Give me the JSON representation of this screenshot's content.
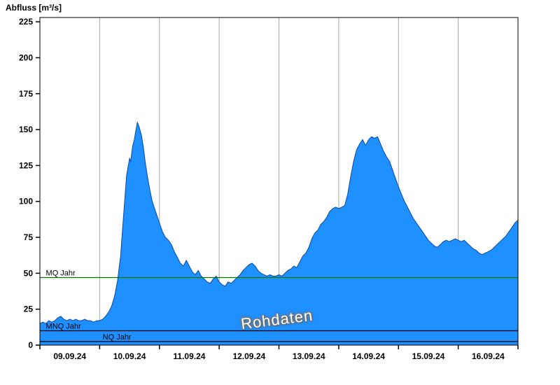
{
  "title": "Abfluss [m³/s]",
  "watermark": "Rohdaten",
  "chart_data": {
    "type": "area",
    "title": "",
    "xlabel": "",
    "ylabel": "Abfluss [m³/s]",
    "ylim": [
      0,
      228
    ],
    "yticks": [
      0,
      25,
      50,
      75,
      100,
      125,
      150,
      175,
      200,
      225
    ],
    "x_labels": [
      "09.09.24",
      "10.09.24",
      "11.09.24",
      "12.09.24",
      "13.09.24",
      "14.09.24",
      "15.09.24",
      "16.09.24"
    ],
    "x_range_days": [
      0,
      8
    ],
    "grid": true,
    "grid_color": "#a9a9a9",
    "fill_color": "#1e90ff",
    "line_color": "#0d47a1",
    "series_name": "Abfluss Rohdaten",
    "reference_lines": [
      {
        "label": "MQ Jahr",
        "value": 47,
        "color": "#007700",
        "label_day": 0.1
      },
      {
        "label": "MNQ Jahr",
        "value": 10,
        "color": "#000000",
        "label_day": 0.1
      },
      {
        "label": "NQ Jahr",
        "value": 2.5,
        "color": "#000000",
        "label_day": 1.05
      }
    ],
    "points": [
      [
        0.0,
        15
      ],
      [
        0.05,
        16
      ],
      [
        0.1,
        15
      ],
      [
        0.15,
        17
      ],
      [
        0.2,
        16
      ],
      [
        0.25,
        17
      ],
      [
        0.3,
        19
      ],
      [
        0.35,
        20
      ],
      [
        0.4,
        18
      ],
      [
        0.45,
        17
      ],
      [
        0.5,
        18
      ],
      [
        0.55,
        17
      ],
      [
        0.6,
        18
      ],
      [
        0.65,
        17
      ],
      [
        0.7,
        17
      ],
      [
        0.75,
        18
      ],
      [
        0.8,
        17
      ],
      [
        0.85,
        17
      ],
      [
        0.9,
        16
      ],
      [
        0.95,
        17
      ],
      [
        1.0,
        17
      ],
      [
        1.05,
        18
      ],
      [
        1.1,
        20
      ],
      [
        1.15,
        23
      ],
      [
        1.2,
        27
      ],
      [
        1.25,
        34
      ],
      [
        1.3,
        45
      ],
      [
        1.35,
        62
      ],
      [
        1.4,
        90
      ],
      [
        1.45,
        118
      ],
      [
        1.5,
        130
      ],
      [
        1.52,
        128
      ],
      [
        1.55,
        138
      ],
      [
        1.58,
        143
      ],
      [
        1.6,
        148
      ],
      [
        1.63,
        155
      ],
      [
        1.66,
        152
      ],
      [
        1.7,
        146
      ],
      [
        1.73,
        138
      ],
      [
        1.76,
        128
      ],
      [
        1.8,
        117
      ],
      [
        1.84,
        108
      ],
      [
        1.88,
        100
      ],
      [
        1.92,
        95
      ],
      [
        1.96,
        90
      ],
      [
        2.0,
        85
      ],
      [
        2.05,
        79
      ],
      [
        2.1,
        75
      ],
      [
        2.15,
        73
      ],
      [
        2.2,
        70
      ],
      [
        2.25,
        65
      ],
      [
        2.3,
        61
      ],
      [
        2.35,
        57
      ],
      [
        2.4,
        55
      ],
      [
        2.45,
        59
      ],
      [
        2.5,
        55
      ],
      [
        2.55,
        51
      ],
      [
        2.6,
        49
      ],
      [
        2.65,
        52
      ],
      [
        2.7,
        48
      ],
      [
        2.75,
        46
      ],
      [
        2.8,
        44
      ],
      [
        2.85,
        43
      ],
      [
        2.9,
        46
      ],
      [
        2.95,
        48
      ],
      [
        3.0,
        44
      ],
      [
        3.05,
        42
      ],
      [
        3.1,
        41
      ],
      [
        3.15,
        44
      ],
      [
        3.2,
        43
      ],
      [
        3.25,
        45
      ],
      [
        3.3,
        47
      ],
      [
        3.35,
        49
      ],
      [
        3.4,
        52
      ],
      [
        3.45,
        54
      ],
      [
        3.5,
        56
      ],
      [
        3.55,
        57
      ],
      [
        3.6,
        55
      ],
      [
        3.65,
        52
      ],
      [
        3.7,
        50
      ],
      [
        3.75,
        49
      ],
      [
        3.8,
        48
      ],
      [
        3.85,
        49
      ],
      [
        3.9,
        48
      ],
      [
        3.95,
        48
      ],
      [
        4.0,
        49
      ],
      [
        4.05,
        48
      ],
      [
        4.1,
        50
      ],
      [
        4.15,
        52
      ],
      [
        4.2,
        53
      ],
      [
        4.25,
        55
      ],
      [
        4.3,
        54
      ],
      [
        4.35,
        58
      ],
      [
        4.4,
        62
      ],
      [
        4.45,
        64
      ],
      [
        4.5,
        68
      ],
      [
        4.55,
        74
      ],
      [
        4.6,
        78
      ],
      [
        4.65,
        80
      ],
      [
        4.7,
        84
      ],
      [
        4.75,
        86
      ],
      [
        4.8,
        89
      ],
      [
        4.85,
        93
      ],
      [
        4.9,
        95
      ],
      [
        4.95,
        96
      ],
      [
        5.0,
        95
      ],
      [
        5.05,
        96
      ],
      [
        5.1,
        97
      ],
      [
        5.15,
        105
      ],
      [
        5.2,
        117
      ],
      [
        5.25,
        128
      ],
      [
        5.3,
        136
      ],
      [
        5.35,
        140
      ],
      [
        5.4,
        143
      ],
      [
        5.45,
        139
      ],
      [
        5.5,
        143
      ],
      [
        5.55,
        145
      ],
      [
        5.6,
        144
      ],
      [
        5.65,
        145
      ],
      [
        5.7,
        140
      ],
      [
        5.75,
        135
      ],
      [
        5.8,
        131
      ],
      [
        5.85,
        128
      ],
      [
        5.9,
        122
      ],
      [
        5.95,
        116
      ],
      [
        6.0,
        110
      ],
      [
        6.05,
        105
      ],
      [
        6.1,
        100
      ],
      [
        6.15,
        96
      ],
      [
        6.2,
        92
      ],
      [
        6.25,
        88
      ],
      [
        6.3,
        85
      ],
      [
        6.35,
        82
      ],
      [
        6.4,
        79
      ],
      [
        6.45,
        76
      ],
      [
        6.5,
        73
      ],
      [
        6.55,
        71
      ],
      [
        6.6,
        69
      ],
      [
        6.65,
        68
      ],
      [
        6.7,
        70
      ],
      [
        6.75,
        72
      ],
      [
        6.8,
        73
      ],
      [
        6.85,
        72
      ],
      [
        6.9,
        73
      ],
      [
        6.95,
        74
      ],
      [
        7.0,
        73
      ],
      [
        7.05,
        72
      ],
      [
        7.1,
        73
      ],
      [
        7.15,
        71
      ],
      [
        7.2,
        69
      ],
      [
        7.25,
        67
      ],
      [
        7.3,
        66
      ],
      [
        7.35,
        64
      ],
      [
        7.4,
        63
      ],
      [
        7.45,
        64
      ],
      [
        7.5,
        65
      ],
      [
        7.55,
        66
      ],
      [
        7.6,
        68
      ],
      [
        7.65,
        70
      ],
      [
        7.7,
        72
      ],
      [
        7.75,
        74
      ],
      [
        7.8,
        76
      ],
      [
        7.85,
        79
      ],
      [
        7.9,
        82
      ],
      [
        7.95,
        85
      ],
      [
        8.0,
        87
      ]
    ]
  }
}
